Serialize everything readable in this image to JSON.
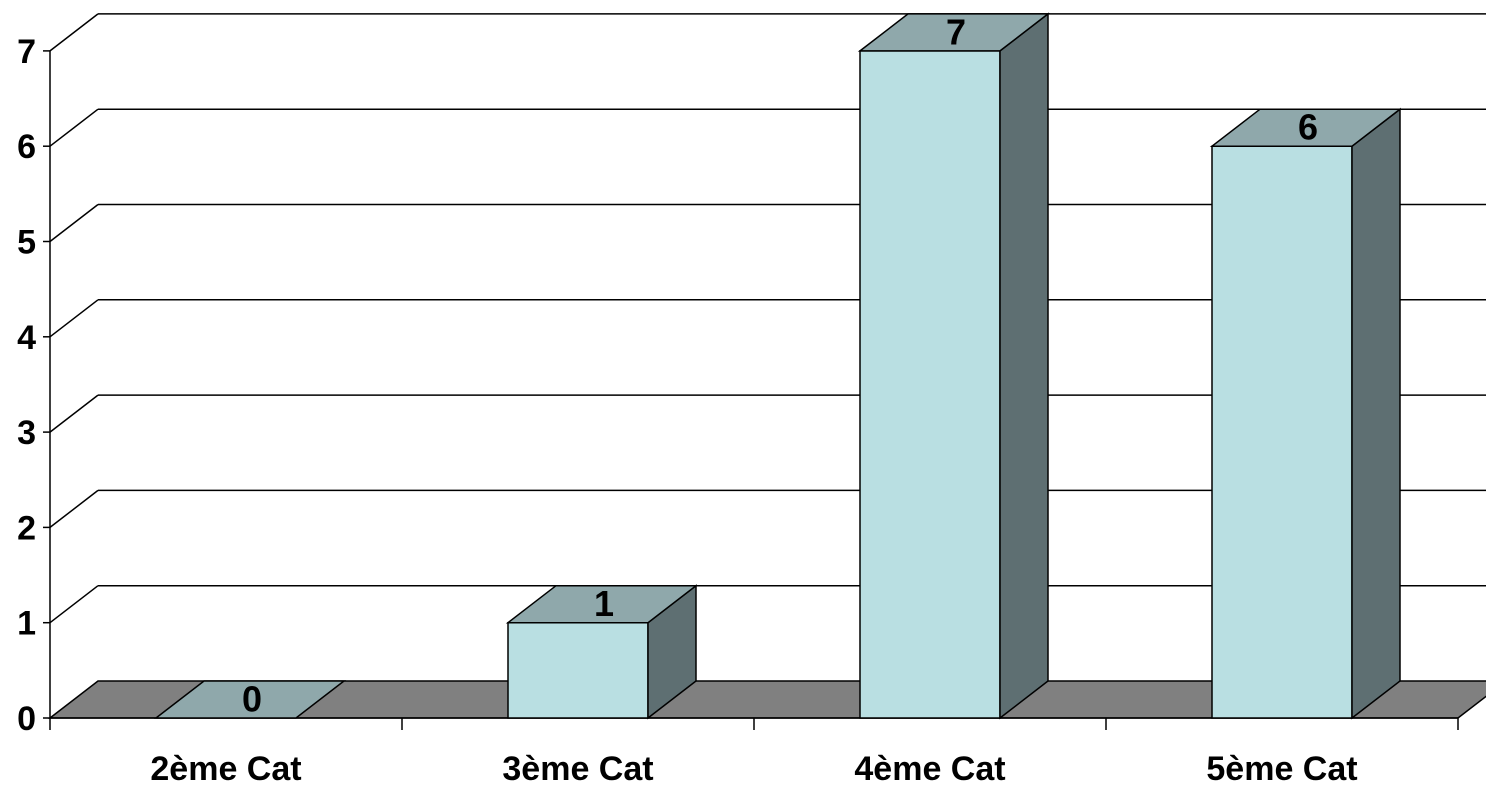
{
  "chart_data": {
    "type": "bar",
    "style": "3d-column",
    "categories": [
      "2ème Cat",
      "3ème Cat",
      "4ème Cat",
      "5ème Cat"
    ],
    "values": [
      0,
      1,
      7,
      6
    ],
    "data_labels": [
      "0",
      "1",
      "7",
      "6"
    ],
    "ylim": [
      0,
      7
    ],
    "yticks": [
      "0",
      "1",
      "2",
      "3",
      "4",
      "5",
      "6",
      "7"
    ],
    "grid": true,
    "legend": "none",
    "title": "",
    "xlabel": "",
    "ylabel": ""
  },
  "colors": {
    "bar_front": "#b9dfe2",
    "bar_top": "#8fa8ab",
    "bar_side": "#5e6f72",
    "floor": "#808080",
    "grid": "#000000"
  }
}
